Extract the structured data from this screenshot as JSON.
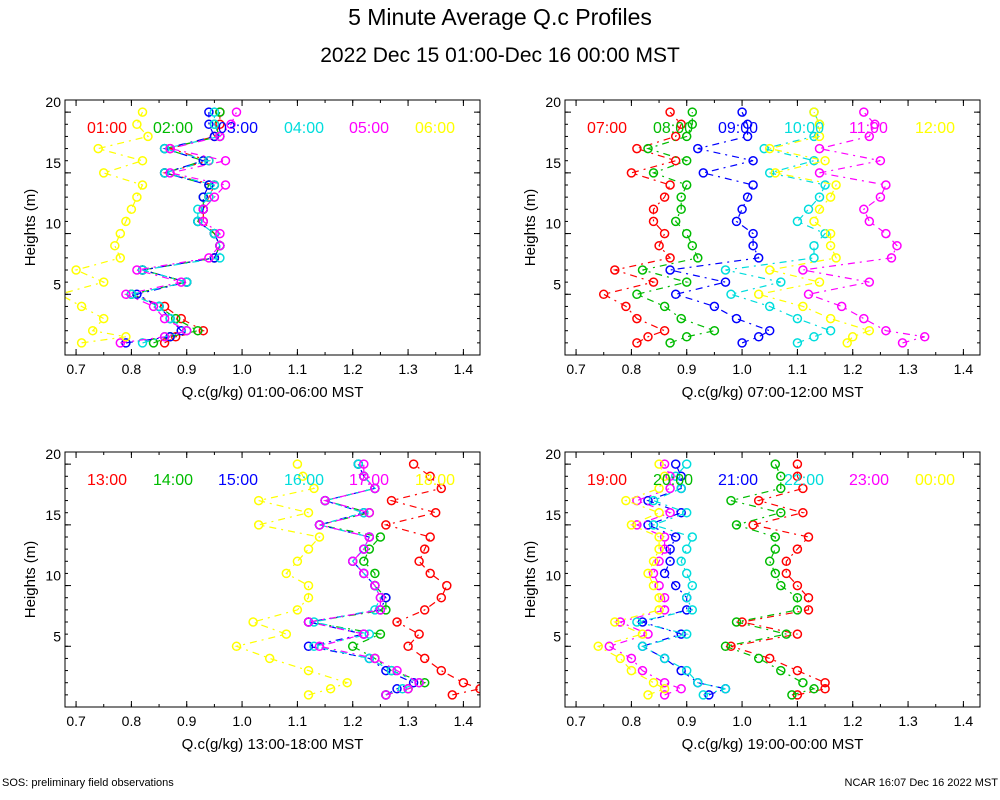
{
  "title": "5 Minute Average Q.c Profiles",
  "subtitle": "2022 Dec 15 01:00-Dec 16 00:00 MST",
  "footer_left": "SOS: preliminary field observations",
  "footer_right": "NCAR 16:07 Dec 16 2022 MST",
  "chart_data": [
    {
      "type": "line",
      "panel": "top-left",
      "xlabel": "Q.c(g/kg) 01:00-06:00 MST",
      "ylabel": "Heights (m)",
      "xlim": [
        0.68,
        1.43
      ],
      "ylim": [
        0,
        21
      ],
      "xticks": [
        0.7,
        0.8,
        0.9,
        1.0,
        1.1,
        1.2,
        1.3,
        1.4
      ],
      "xtick_labels": [
        "0.7",
        "0.8",
        "0.9",
        "1.0",
        "1.1",
        "1.2",
        "1.3",
        "1.4"
      ],
      "yticks": [
        5,
        10,
        15,
        20
      ],
      "ytick_labels": [
        "5",
        "10",
        "15",
        "20"
      ],
      "heights": [
        1,
        1.5,
        2,
        3,
        4,
        5,
        6,
        7,
        8,
        9,
        10,
        11,
        12,
        13,
        14,
        15,
        16,
        17,
        18,
        19,
        20
      ],
      "series": [
        {
          "name": "01:00",
          "color": "#ff0000",
          "values": [
            0.86,
            0.88,
            0.93,
            0.89,
            0.86,
            0.8,
            0.9,
            0.82,
            0.95,
            0.96,
            0.95,
            0.93,
            0.93,
            0.94,
            0.95,
            0.86,
            0.94,
            0.87,
            0.95,
            0.96,
            0.96
          ]
        },
        {
          "name": "02:00",
          "color": "#00bb00",
          "values": [
            0.84,
            0.87,
            0.92,
            0.88,
            0.85,
            0.8,
            0.9,
            0.82,
            0.95,
            0.96,
            0.95,
            0.92,
            0.93,
            0.93,
            0.94,
            0.86,
            0.93,
            0.86,
            0.96,
            0.95,
            0.96
          ]
        },
        {
          "name": "03:00",
          "color": "#0000ff",
          "values": [
            0.79,
            0.87,
            0.89,
            0.87,
            0.85,
            0.81,
            0.9,
            0.82,
            0.95,
            0.96,
            0.95,
            0.92,
            0.93,
            0.93,
            0.94,
            0.86,
            0.93,
            0.86,
            0.95,
            0.94,
            0.94
          ]
        },
        {
          "name": "04:00",
          "color": "#00dddd",
          "values": [
            0.82,
            0.86,
            0.9,
            0.87,
            0.85,
            0.8,
            0.9,
            0.82,
            0.96,
            0.96,
            0.95,
            0.92,
            0.92,
            0.94,
            0.95,
            0.86,
            0.94,
            0.86,
            0.96,
            0.95,
            0.95
          ]
        },
        {
          "name": "05:00",
          "color": "#ff00ff",
          "values": [
            0.78,
            0.86,
            0.9,
            0.86,
            0.84,
            0.79,
            0.89,
            0.81,
            0.94,
            0.96,
            0.96,
            0.93,
            0.93,
            0.95,
            0.97,
            0.87,
            0.97,
            0.87,
            0.96,
            0.98,
            0.99
          ]
        },
        {
          "name": "06:00",
          "color": "#ffff00",
          "values": [
            0.71,
            0.79,
            0.73,
            0.75,
            0.71,
            0.67,
            0.75,
            0.7,
            0.78,
            0.77,
            0.78,
            0.79,
            0.8,
            0.81,
            0.82,
            0.75,
            0.82,
            0.74,
            0.83,
            0.81,
            0.82
          ]
        }
      ]
    },
    {
      "type": "line",
      "panel": "top-right",
      "xlabel": "Q.c(g/kg) 07:00-12:00 MST",
      "ylabel": "Heights (m)",
      "xlim": [
        0.68,
        1.43
      ],
      "ylim": [
        0,
        21
      ],
      "xticks": [
        0.7,
        0.8,
        0.9,
        1.0,
        1.1,
        1.2,
        1.3,
        1.4
      ],
      "xtick_labels": [
        "0.7",
        "0.8",
        "0.9",
        "1.0",
        "1.1",
        "1.2",
        "1.3",
        "1.4"
      ],
      "yticks": [
        5,
        10,
        15,
        20
      ],
      "ytick_labels": [
        "5",
        "10",
        "15",
        "20"
      ],
      "heights": [
        1,
        1.5,
        2,
        3,
        4,
        5,
        6,
        7,
        8,
        9,
        10,
        11,
        12,
        13,
        14,
        15,
        16,
        17,
        18,
        19,
        20
      ],
      "series": [
        {
          "name": "07:00",
          "color": "#ff0000",
          "values": [
            0.81,
            0.83,
            0.86,
            0.81,
            0.79,
            0.75,
            0.84,
            0.77,
            0.87,
            0.85,
            0.86,
            0.84,
            0.84,
            0.86,
            0.87,
            0.8,
            0.88,
            0.81,
            0.88,
            0.89,
            0.87
          ]
        },
        {
          "name": "08:00",
          "color": "#00bb00",
          "values": [
            0.87,
            0.9,
            0.95,
            0.89,
            0.86,
            0.81,
            0.9,
            0.82,
            0.92,
            0.91,
            0.9,
            0.88,
            0.89,
            0.89,
            0.9,
            0.84,
            0.9,
            0.83,
            0.9,
            0.91,
            0.91
          ]
        },
        {
          "name": "09:00",
          "color": "#0000ff",
          "values": [
            1.0,
            1.03,
            1.05,
            0.99,
            0.95,
            0.88,
            0.97,
            0.87,
            1.03,
            1.02,
            1.02,
            0.99,
            1.0,
            1.01,
            1.02,
            0.93,
            1.02,
            0.92,
            1.01,
            1.01,
            1.0
          ]
        },
        {
          "name": "10:00",
          "color": "#00dddd",
          "values": [
            1.1,
            1.13,
            1.16,
            1.1,
            1.05,
            0.98,
            1.07,
            0.97,
            1.13,
            1.13,
            1.15,
            1.1,
            1.12,
            1.14,
            1.15,
            1.05,
            1.13,
            1.04,
            1.13,
            1.14,
            1.13
          ]
        },
        {
          "name": "11:00",
          "color": "#ff00ff",
          "values": [
            1.29,
            1.33,
            1.26,
            1.22,
            1.18,
            1.12,
            1.23,
            1.11,
            1.27,
            1.28,
            1.26,
            1.23,
            1.22,
            1.25,
            1.26,
            1.14,
            1.25,
            1.14,
            1.23,
            1.24,
            1.22
          ]
        },
        {
          "name": "12:00",
          "color": "#ffff00",
          "values": [
            1.19,
            1.2,
            1.23,
            1.16,
            1.11,
            1.03,
            1.14,
            1.05,
            1.17,
            1.16,
            1.16,
            1.13,
            1.14,
            1.16,
            1.17,
            1.06,
            1.15,
            1.05,
            1.14,
            1.14,
            1.13
          ]
        }
      ]
    },
    {
      "type": "line",
      "panel": "bottom-left",
      "xlabel": "Q.c(g/kg) 13:00-18:00 MST",
      "ylabel": "Heights (m)",
      "xlim": [
        0.68,
        1.43
      ],
      "ylim": [
        0,
        21
      ],
      "xticks": [
        0.7,
        0.8,
        0.9,
        1.0,
        1.1,
        1.2,
        1.3,
        1.4
      ],
      "xtick_labels": [
        "0.7",
        "0.8",
        "0.9",
        "1.0",
        "1.1",
        "1.2",
        "1.3",
        "1.4"
      ],
      "yticks": [
        5,
        10,
        15,
        20
      ],
      "ytick_labels": [
        "5",
        "10",
        "15",
        "20"
      ],
      "heights": [
        1,
        1.5,
        2,
        3,
        4,
        5,
        6,
        7,
        8,
        9,
        10,
        11,
        12,
        13,
        14,
        15,
        16,
        17,
        18,
        19,
        20
      ],
      "series": [
        {
          "name": "13:00",
          "color": "#ff0000",
          "values": [
            1.38,
            1.43,
            1.4,
            1.36,
            1.33,
            1.3,
            1.32,
            1.28,
            1.33,
            1.36,
            1.37,
            1.34,
            1.32,
            1.33,
            1.34,
            1.26,
            1.35,
            1.27,
            1.36,
            1.34,
            1.31
          ]
        },
        {
          "name": "14:00",
          "color": "#00bb00",
          "values": [
            1.26,
            1.3,
            1.33,
            1.27,
            1.24,
            1.2,
            1.25,
            1.12,
            1.26,
            1.26,
            1.24,
            1.24,
            1.22,
            1.23,
            1.25,
            1.14,
            1.23,
            1.15,
            1.24,
            1.22,
            1.21
          ]
        },
        {
          "name": "15:00",
          "color": "#0000ff",
          "values": [
            1.26,
            1.28,
            1.31,
            1.26,
            1.23,
            1.12,
            1.22,
            1.12,
            1.25,
            1.26,
            1.24,
            1.22,
            1.2,
            1.22,
            1.23,
            1.14,
            1.22,
            1.15,
            1.24,
            1.22,
            1.21
          ]
        },
        {
          "name": "16:00",
          "color": "#00dddd",
          "values": [
            1.26,
            1.29,
            1.32,
            1.27,
            1.23,
            1.13,
            1.23,
            1.13,
            1.24,
            1.25,
            1.24,
            1.22,
            1.2,
            1.22,
            1.23,
            1.14,
            1.22,
            1.15,
            1.24,
            1.22,
            1.21
          ]
        },
        {
          "name": "17:00",
          "color": "#ff00ff",
          "values": [
            1.26,
            1.3,
            1.32,
            1.28,
            1.24,
            1.14,
            1.22,
            1.12,
            1.25,
            1.25,
            1.24,
            1.22,
            1.2,
            1.22,
            1.23,
            1.14,
            1.23,
            1.15,
            1.24,
            1.22,
            1.22
          ]
        },
        {
          "name": "18:00",
          "color": "#ffff00",
          "values": [
            1.12,
            1.16,
            1.19,
            1.12,
            1.05,
            0.99,
            1.08,
            1.02,
            1.1,
            1.12,
            1.12,
            1.08,
            1.1,
            1.12,
            1.14,
            1.03,
            1.12,
            1.03,
            1.13,
            1.11,
            1.1
          ]
        }
      ]
    },
    {
      "type": "line",
      "panel": "bottom-right",
      "xlabel": "Q.c(g/kg) 19:00-00:00 MST",
      "ylabel": "Heights (m)",
      "xlim": [
        0.68,
        1.43
      ],
      "ylim": [
        0,
        21
      ],
      "xticks": [
        0.7,
        0.8,
        0.9,
        1.0,
        1.1,
        1.2,
        1.3,
        1.4
      ],
      "xtick_labels": [
        "0.7",
        "0.8",
        "0.9",
        "1.0",
        "1.1",
        "1.2",
        "1.3",
        "1.4"
      ],
      "yticks": [
        5,
        10,
        15,
        20
      ],
      "ytick_labels": [
        "5",
        "10",
        "15",
        "20"
      ],
      "heights": [
        1,
        1.5,
        2,
        3,
        4,
        5,
        6,
        7,
        8,
        9,
        10,
        11,
        12,
        13,
        14,
        15,
        16,
        17,
        18,
        19,
        20
      ],
      "series": [
        {
          "name": "19:00",
          "color": "#ff0000",
          "values": [
            1.1,
            1.15,
            1.15,
            1.1,
            1.05,
            0.98,
            1.1,
            1.0,
            1.12,
            1.12,
            1.1,
            1.08,
            1.08,
            1.1,
            1.12,
            1.02,
            1.11,
            1.03,
            1.11,
            1.1,
            1.1
          ]
        },
        {
          "name": "20:00",
          "color": "#00bb00",
          "values": [
            1.09,
            1.13,
            1.11,
            1.07,
            1.03,
            0.97,
            1.08,
            0.99,
            1.1,
            1.1,
            1.07,
            1.06,
            1.05,
            1.06,
            1.06,
            0.99,
            1.07,
            0.98,
            1.07,
            1.07,
            1.06
          ]
        },
        {
          "name": "21:00",
          "color": "#0000ff",
          "values": [
            0.94,
            0.97,
            0.92,
            0.89,
            0.86,
            0.82,
            0.89,
            0.82,
            0.9,
            0.9,
            0.88,
            0.86,
            0.87,
            0.87,
            0.88,
            0.83,
            0.89,
            0.83,
            0.89,
            0.89,
            0.88
          ]
        },
        {
          "name": "22:00",
          "color": "#00dddd",
          "values": [
            0.93,
            0.97,
            0.92,
            0.9,
            0.86,
            0.82,
            0.9,
            0.81,
            0.91,
            0.9,
            0.91,
            0.9,
            0.89,
            0.9,
            0.91,
            0.84,
            0.9,
            0.84,
            0.89,
            0.88,
            0.9
          ]
        },
        {
          "name": "23:00",
          "color": "#ff00ff",
          "values": [
            0.86,
            0.89,
            0.86,
            0.82,
            0.8,
            0.76,
            0.83,
            0.78,
            0.86,
            0.86,
            0.85,
            0.84,
            0.85,
            0.86,
            0.86,
            0.81,
            0.87,
            0.81,
            0.87,
            0.87,
            0.86
          ]
        },
        {
          "name": "00:00",
          "color": "#ffff00",
          "values": [
            0.83,
            0.86,
            0.84,
            0.8,
            0.78,
            0.74,
            0.82,
            0.77,
            0.85,
            0.85,
            0.84,
            0.83,
            0.84,
            0.85,
            0.85,
            0.8,
            0.85,
            0.79,
            0.85,
            0.86,
            0.85
          ]
        }
      ]
    }
  ]
}
